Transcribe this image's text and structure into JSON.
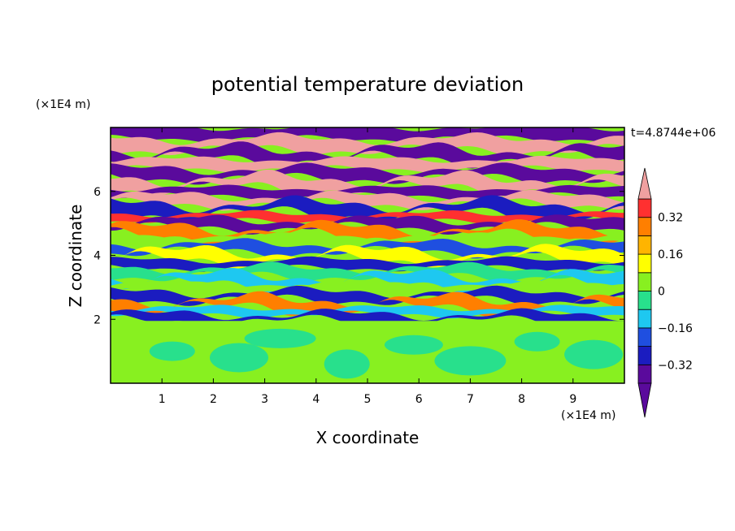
{
  "chart_data": {
    "type": "heatmap",
    "title": "potential temperature deviation",
    "xlabel": "X coordinate",
    "ylabel": "Z coordinate",
    "x_unit_label": "(×1E4 m)",
    "y_unit_label": "(×1E4 m)",
    "time_label": "t=4.8744e+06",
    "xlim": [
      0,
      10
    ],
    "ylim": [
      0,
      8
    ],
    "x_ticks": [
      "1",
      "2",
      "3",
      "4",
      "5",
      "6",
      "7",
      "8",
      "9"
    ],
    "x_tick_values": [
      1,
      2,
      3,
      4,
      5,
      6,
      7,
      8,
      9
    ],
    "y_ticks": [
      "2",
      "4",
      "6"
    ],
    "y_tick_values": [
      2,
      4,
      6
    ],
    "colorbar": {
      "levels": [
        -0.4,
        -0.32,
        -0.24,
        -0.16,
        -0.08,
        0,
        0.08,
        0.16,
        0.24,
        0.32,
        0.4
      ],
      "tick_labels": [
        "0.32",
        "0.16",
        "0",
        "−0.16",
        "−0.32"
      ],
      "tick_values": [
        0.32,
        0.16,
        0,
        -0.16,
        -0.32
      ],
      "colors": [
        "#5a0a9c",
        "#1b1cc0",
        "#1f4fe0",
        "#1ec8f0",
        "#28e08c",
        "#88f020",
        "#ffff00",
        "#ffb400",
        "#ff7f00",
        "#ff3030",
        "#f0a0a0"
      ]
    },
    "bands": [
      {
        "z0": 7.65,
        "z1": 8.0,
        "level": 0
      },
      {
        "z0": 7.3,
        "z1": 7.65,
        "level": 10
      },
      {
        "z0": 7.0,
        "z1": 7.3,
        "level": 0
      },
      {
        "z0": 6.7,
        "z1": 7.0,
        "level": 10
      },
      {
        "z0": 6.4,
        "z1": 6.7,
        "level": 0
      },
      {
        "z0": 6.1,
        "z1": 6.4,
        "level": 10
      },
      {
        "z0": 5.85,
        "z1": 6.1,
        "level": 0
      },
      {
        "z0": 5.6,
        "z1": 5.85,
        "level": 10
      },
      {
        "z0": 5.3,
        "z1": 5.6,
        "level": 1
      },
      {
        "z0": 5.1,
        "z1": 5.3,
        "level": 9
      },
      {
        "z0": 4.85,
        "z1": 5.1,
        "level": 0
      },
      {
        "z0": 4.6,
        "z1": 4.85,
        "level": 8
      },
      {
        "z0": 4.35,
        "z1": 4.6,
        "level": 5
      },
      {
        "z0": 4.1,
        "z1": 4.35,
        "level": 2
      },
      {
        "z0": 3.85,
        "z1": 4.1,
        "level": 6
      },
      {
        "z0": 3.6,
        "z1": 3.85,
        "level": 1
      },
      {
        "z0": 3.35,
        "z1": 3.6,
        "level": 4
      },
      {
        "z0": 3.1,
        "z1": 3.35,
        "level": 3
      },
      {
        "z0": 2.85,
        "z1": 3.1,
        "level": 5
      },
      {
        "z0": 2.6,
        "z1": 2.85,
        "level": 1
      },
      {
        "z0": 2.35,
        "z1": 2.6,
        "level": 8
      },
      {
        "z0": 2.15,
        "z1": 2.35,
        "level": 3
      },
      {
        "z0": 1.95,
        "z1": 2.15,
        "level": 1
      },
      {
        "z0": 0.0,
        "z1": 1.95,
        "level": 5
      }
    ]
  }
}
